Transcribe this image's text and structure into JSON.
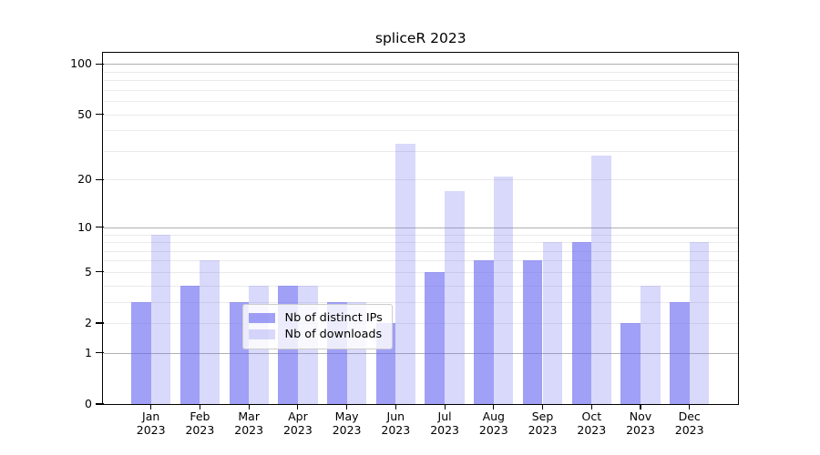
{
  "chart_data": {
    "type": "bar",
    "title": "spliceR 2023",
    "categories": [
      "Jan 2023",
      "Feb 2023",
      "Mar 2023",
      "Apr 2023",
      "May 2023",
      "Jun 2023",
      "Jul 2023",
      "Aug 2023",
      "Sep 2023",
      "Oct 2023",
      "Nov 2023",
      "Dec 2023"
    ],
    "series": [
      {
        "name": "Nb of distinct IPs",
        "color": "rgba(102,102,240,0.62)",
        "values": [
          3,
          4,
          3,
          4,
          3,
          2,
          5,
          6,
          6,
          8,
          2,
          3
        ]
      },
      {
        "name": "Nb of downloads",
        "color": "rgba(102,102,240,0.25)",
        "values": [
          9,
          6,
          4,
          4,
          3,
          33,
          17,
          21,
          8,
          28,
          4,
          8
        ]
      }
    ],
    "xlabel": "",
    "ylabel": "",
    "yscale": "log1p",
    "ylim": [
      0,
      116
    ],
    "yticks": [
      0,
      1,
      2,
      5,
      10,
      20,
      50,
      100
    ],
    "minor_gridlines": [
      2,
      3,
      4,
      5,
      6,
      7,
      8,
      9,
      20,
      30,
      40,
      50,
      60,
      70,
      80,
      90
    ],
    "major_gridlines": [
      1,
      10,
      100
    ],
    "grid": true,
    "legend_position": "lower center"
  },
  "colors": {
    "background": "#ffffff",
    "bar_dark_rendered": "#a5a5f2",
    "bar_light_rendered": "#dadaf9",
    "axis": "#000000",
    "major_grid": "#b0b0b0",
    "minor_grid": "#eaeaea",
    "legend_border": "#cccccc",
    "text": "#000000"
  }
}
